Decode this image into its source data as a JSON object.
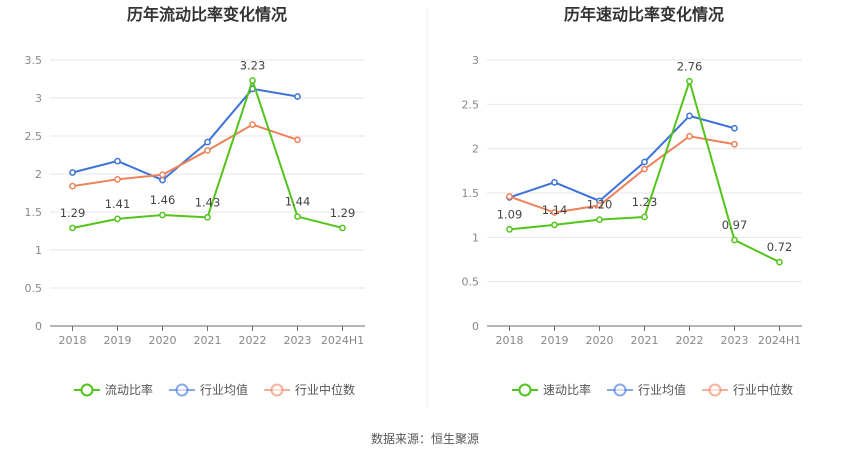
{
  "source_text": "数据来源：恒生聚源",
  "chart_data": [
    {
      "type": "line",
      "title": "历年流动比率变化情况",
      "categories": [
        "2018",
        "2019",
        "2020",
        "2021",
        "2022",
        "2023",
        "2024H1"
      ],
      "y_ticks": [
        "0",
        "0.5",
        "1",
        "1.5",
        "2",
        "2.5",
        "3",
        "3.5"
      ],
      "ylim": [
        0,
        3.5
      ],
      "grid": true,
      "legend_position": "bottom",
      "series": [
        {
          "name": "流动比率",
          "color": "#52c41a",
          "values": [
            1.29,
            1.41,
            1.46,
            1.43,
            3.23,
            1.44,
            1.29
          ],
          "labels": [
            "1.29",
            "1.41",
            "1.46",
            "1.43",
            "3.23",
            "1.44",
            "1.29"
          ]
        },
        {
          "name": "行业均值",
          "color": "#3b73d9",
          "values": [
            2.02,
            2.17,
            1.92,
            2.42,
            3.12,
            3.02,
            null
          ]
        },
        {
          "name": "行业中位数",
          "color": "#ee8259",
          "values": [
            1.84,
            1.93,
            1.99,
            2.31,
            2.65,
            2.45,
            null
          ]
        }
      ]
    },
    {
      "type": "line",
      "title": "历年速动比率变化情况",
      "categories": [
        "2018",
        "2019",
        "2020",
        "2021",
        "2022",
        "2023",
        "2024H1"
      ],
      "y_ticks": [
        "0",
        "0.5",
        "1",
        "1.5",
        "2",
        "2.5",
        "3"
      ],
      "ylim": [
        0,
        3
      ],
      "grid": true,
      "legend_position": "bottom",
      "series": [
        {
          "name": "速动比率",
          "color": "#52c41a",
          "values": [
            1.09,
            1.14,
            1.2,
            1.23,
            2.76,
            0.97,
            0.72
          ],
          "labels": [
            "1.09",
            "1.14",
            "1.20",
            "1.23",
            "2.76",
            "0.97",
            "0.72"
          ]
        },
        {
          "name": "行业均值",
          "color": "#3b73d9",
          "values": [
            1.45,
            1.62,
            1.41,
            1.85,
            2.37,
            2.23,
            null
          ]
        },
        {
          "name": "行业中位数",
          "color": "#ee8259",
          "values": [
            1.46,
            1.28,
            1.36,
            1.77,
            2.14,
            2.05,
            null
          ]
        }
      ]
    }
  ]
}
